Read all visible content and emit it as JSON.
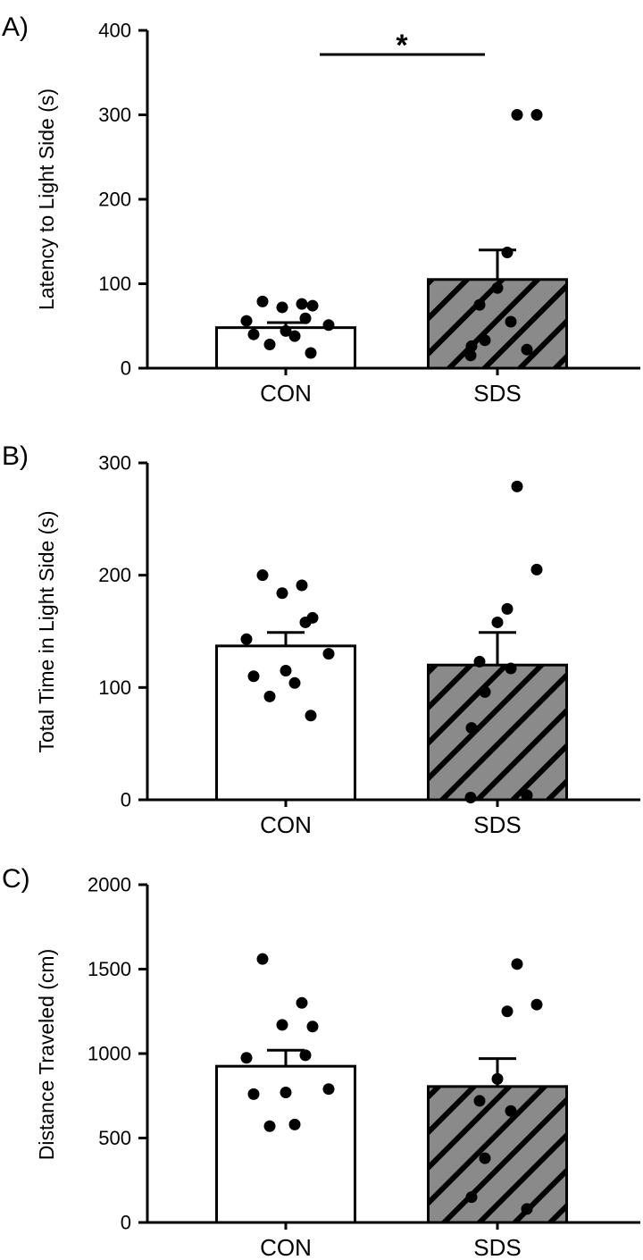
{
  "colors": {
    "axis": "#000000",
    "con_fill": "#ffffff",
    "sds_fill": "#8a8a8a",
    "hatch": "#000000",
    "point": "#000000",
    "background": "#ffffff"
  },
  "chart_data": [
    {
      "type": "bar",
      "panel_label": "A)",
      "title": "",
      "xlabel": "",
      "ylabel": "Latency to Light Side (s)",
      "ylim": [
        0,
        400
      ],
      "yticks": [
        0,
        100,
        200,
        300,
        400
      ],
      "categories": [
        "CON",
        "SDS"
      ],
      "means": [
        48,
        105
      ],
      "sem": [
        6,
        35
      ],
      "points": [
        [
          79,
          76,
          72,
          74,
          59,
          56,
          51,
          44,
          40,
          38,
          28,
          18
        ],
        [
          300,
          300,
          137,
          95,
          75,
          55,
          33,
          26,
          22,
          15
        ]
      ],
      "significance": {
        "label": "*",
        "between": [
          "CON",
          "SDS"
        ]
      }
    },
    {
      "type": "bar",
      "panel_label": "B)",
      "title": "",
      "xlabel": "",
      "ylabel": "Total Time in Light Side (s)",
      "ylim": [
        0,
        300
      ],
      "yticks": [
        0,
        100,
        200,
        300
      ],
      "categories": [
        "CON",
        "SDS"
      ],
      "means": [
        137,
        120
      ],
      "sem": [
        12,
        29
      ],
      "points": [
        [
          200,
          191,
          184,
          162,
          158,
          143,
          130,
          115,
          110,
          104,
          92,
          75
        ],
        [
          279,
          205,
          170,
          158,
          123,
          117,
          96,
          64,
          4,
          2
        ]
      ]
    },
    {
      "type": "bar",
      "panel_label": "C)",
      "title": "",
      "xlabel": "",
      "ylabel": "Distance Traveled (cm)",
      "ylim": [
        0,
        2000
      ],
      "yticks": [
        0,
        500,
        1000,
        1500,
        2000
      ],
      "categories": [
        "CON",
        "SDS"
      ],
      "means": [
        925,
        805
      ],
      "sem": [
        95,
        165
      ],
      "points": [
        [
          1560,
          1300,
          1170,
          1160,
          990,
          975,
          790,
          770,
          760,
          580,
          570
        ],
        [
          1530,
          1290,
          1250,
          850,
          720,
          660,
          380,
          150,
          80
        ]
      ]
    }
  ]
}
